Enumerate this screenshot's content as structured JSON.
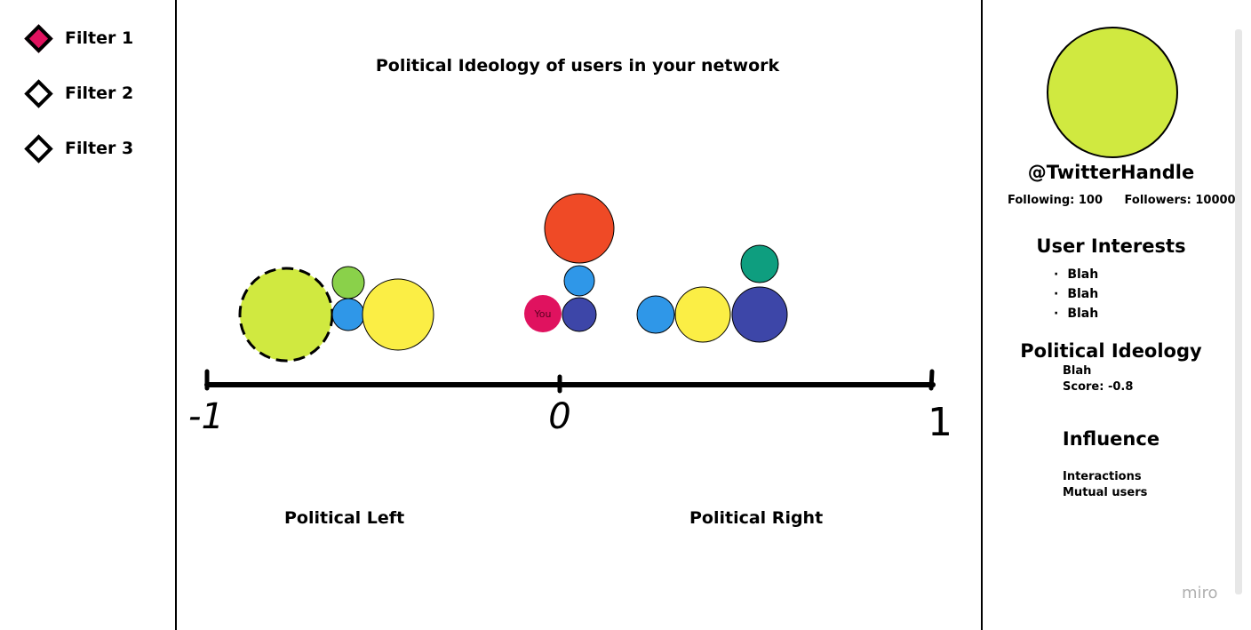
{
  "filters": [
    {
      "label": "Filter 1",
      "active": true
    },
    {
      "label": "Filter 2",
      "active": false
    },
    {
      "label": "Filter 3",
      "active": false
    }
  ],
  "chart": {
    "title": "Political Ideology of users in your network",
    "axis_ticks": [
      "-1",
      "0",
      "1"
    ],
    "left_label": "Political Left",
    "right_label": "Political Right",
    "you_label": "You"
  },
  "chart_data": {
    "type": "scatter",
    "title": "Political Ideology of users in your network",
    "xlim": [
      -1,
      1
    ],
    "x_ticks": [
      "-1",
      "0",
      "1"
    ],
    "points": [
      {
        "x": -0.8,
        "size": "large",
        "color": "#d0e940",
        "selected": true
      },
      {
        "x": -0.58,
        "size": "small",
        "color": "#8ad14a"
      },
      {
        "x": -0.58,
        "size": "small",
        "color": "#2f97e8"
      },
      {
        "x": -0.43,
        "size": "medium",
        "color": "#fbee45"
      },
      {
        "x": -0.04,
        "size": "small",
        "color": "#e0125f",
        "label": "You"
      },
      {
        "x": 0.05,
        "size": "large",
        "color": "#ef4a26"
      },
      {
        "x": 0.05,
        "size": "small",
        "color": "#2f97e8"
      },
      {
        "x": 0.05,
        "size": "small",
        "color": "#3d46a8"
      },
      {
        "x": 0.26,
        "size": "small",
        "color": "#2f97e8"
      },
      {
        "x": 0.4,
        "size": "medium",
        "color": "#fbee45"
      },
      {
        "x": 0.55,
        "size": "small",
        "color": "#0e9e7f"
      },
      {
        "x": 0.55,
        "size": "medium",
        "color": "#3d46a8"
      }
    ]
  },
  "profile": {
    "avatar_color": "#d0e940",
    "handle": "@TwitterHandle",
    "following": "Following: 100",
    "followers": "Followers: 10000",
    "interests_title": "User Interests",
    "interests": [
      "Blah",
      "Blah",
      "Blah"
    ],
    "ideology_title": "Political Ideology",
    "ideology_value": "Blah",
    "ideology_score": "Score: -0.8",
    "influence_title": "Influence",
    "influence_items": [
      "Interactions",
      "Mutual users"
    ]
  },
  "watermark": "miro"
}
